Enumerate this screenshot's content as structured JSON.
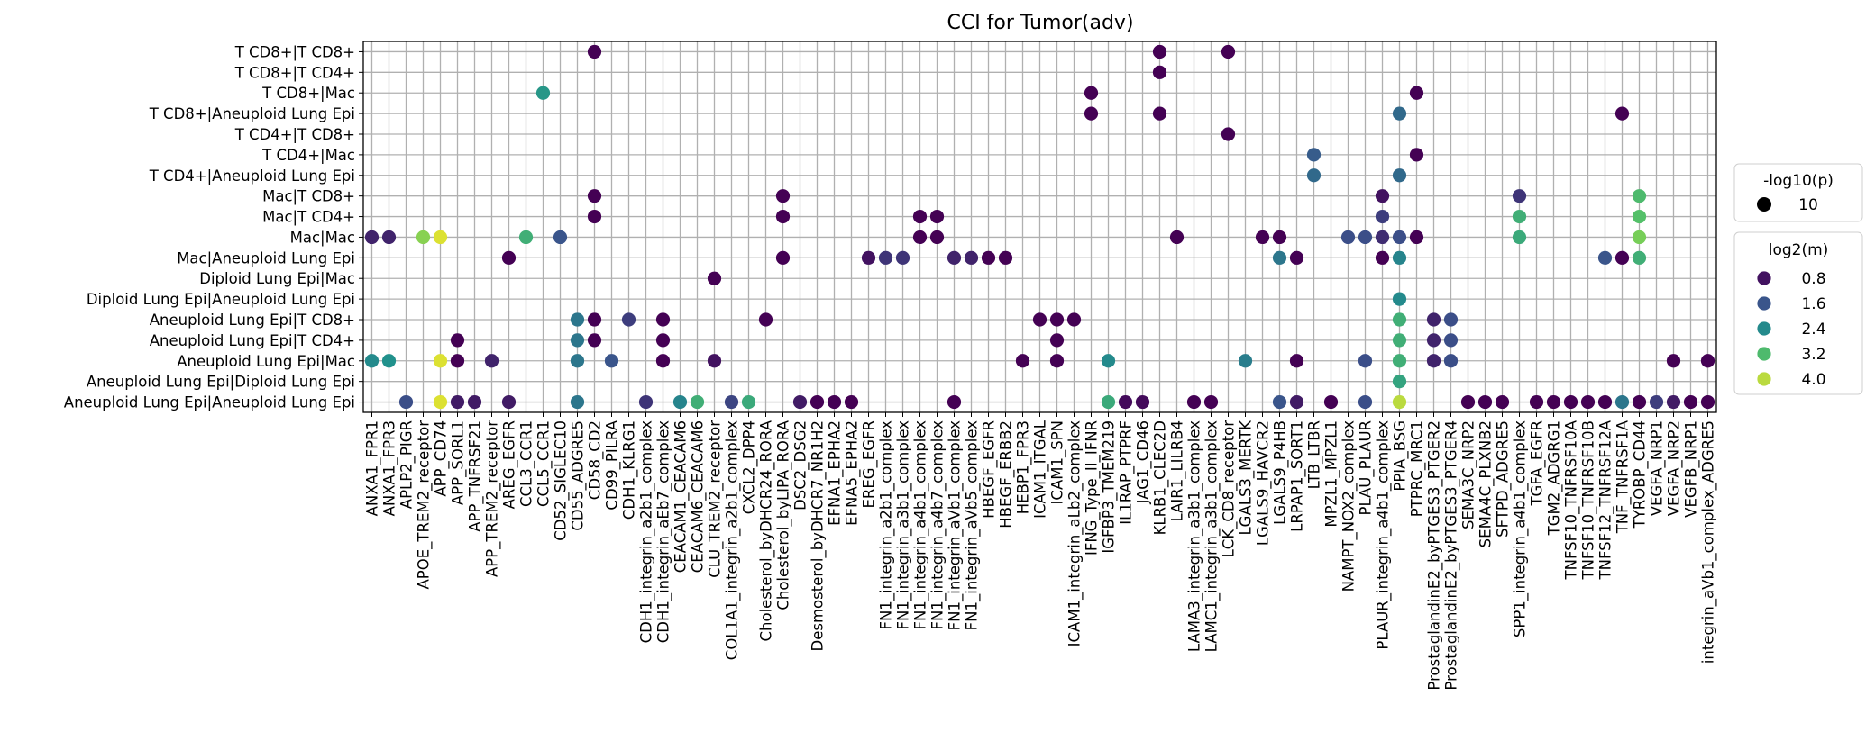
{
  "chart_data": {
    "type": "scatter",
    "title": "CCI for Tumor(adv)",
    "xlabel": "",
    "ylabel": "",
    "grid": true,
    "y_categories": [
      "T CD8+|T CD8+",
      "T CD8+|T CD4+",
      "T CD8+|Mac",
      "T CD8+|Aneuploid Lung Epi",
      "T CD4+|T CD8+",
      "T CD4+|Mac",
      "T CD4+|Aneuploid Lung Epi",
      "Mac|T CD8+",
      "Mac|T CD4+",
      "Mac|Mac",
      "Mac|Aneuploid Lung Epi",
      "Diploid Lung Epi|Mac",
      "Diploid Lung Epi|Aneuploid Lung Epi",
      "Aneuploid Lung Epi|T CD8+",
      "Aneuploid Lung Epi|T CD4+",
      "Aneuploid Lung Epi|Mac",
      "Aneuploid Lung Epi|Diploid Lung Epi",
      "Aneuploid Lung Epi|Aneuploid Lung Epi"
    ],
    "x_categories": [
      "ANXA1_FPR1",
      "ANXA1_FPR3",
      "APLP2_PIGR",
      "APOE_TREM2_receptor",
      "APP_CD74",
      "APP_SORL1",
      "APP_TNFRSF21",
      "APP_TREM2_receptor",
      "AREG_EGFR",
      "CCL3_CCR1",
      "CCL5_CCR1",
      "CD52_SIGLEC10",
      "CD55_ADGRE5",
      "CD58_CD2",
      "CD99_PILRA",
      "CDH1_KLRG1",
      "CDH1_integrin_a2b1_complex",
      "CDH1_integrin_aEb7_complex",
      "CEACAM1_CEACAM6",
      "CEACAM6_CEACAM6",
      "CLU_TREM2_receptor",
      "COL1A1_integrin_a2b1_complex",
      "CXCL2_DPP4",
      "Cholesterol_byDHCR24_RORA",
      "Cholesterol_byLIPA_RORA",
      "DSC2_DSG2",
      "Desmosterol_byDHCR7_NR1H2",
      "EFNA1_EPHA2",
      "EFNA5_EPHA2",
      "EREG_EGFR",
      "FN1_integrin_a2b1_complex",
      "FN1_integrin_a3b1_complex",
      "FN1_integrin_a4b1_complex",
      "FN1_integrin_a4b7_complex",
      "FN1_integrin_aVb1_complex",
      "FN1_integrin_aVb5_complex",
      "HBEGF_EGFR",
      "HBEGF_ERBB2",
      "HEBP1_FPR3",
      "ICAM1_ITGAL",
      "ICAM1_SPN",
      "ICAM1_integrin_aLb2_complex",
      "IFNG_Type_II_IFNR",
      "IGFBP3_TMEM219",
      "IL1RAP_PTPRF",
      "JAG1_CD46",
      "KLRB1_CLEC2D",
      "LAIR1_LILRB4",
      "LAMA3_integrin_a3b1_complex",
      "LAMC1_integrin_a3b1_complex",
      "LCK_CD8_receptor",
      "LGALS3_MERTK",
      "LGALS9_HAVCR2",
      "LGALS9_P4HB",
      "LRPAP1_SORT1",
      "LTB_LTBR",
      "MPZL1_MPZL1",
      "NAMPT_NOX2_complex",
      "PLAU_PLAUR",
      "PLAUR_integrin_a4b1_complex",
      "PPIA_BSG",
      "PTPRC_MRC1",
      "ProstaglandinE2_byPTGES3_PTGER2",
      "ProstaglandinE2_byPTGES3_PTGER4",
      "SEMA3C_NRP2",
      "SEMA4C_PLXNB2",
      "SFTPD_ADGRE5",
      "SPP1_integrin_a4b1_complex",
      "TGFA_EGFR",
      "TGM2_ADGRG1",
      "TNFSF10_TNFRSF10A",
      "TNFSF10_TNFRSF10B",
      "TNFSF12_TNFRSF12A",
      "TNF_TNFRSF1A",
      "TYROBP_CD44",
      "VEGFA_NRP1",
      "VEGFA_NRP2",
      "VEGFB_NRP1",
      "integrin_aVb1_complex_ADGRE5"
    ],
    "points": [
      {
        "x": "CD58_CD2",
        "y": "T CD8+|T CD8+",
        "log2m": 0.6
      },
      {
        "x": "KLRB1_CLEC2D",
        "y": "T CD8+|T CD8+",
        "log2m": 0.6
      },
      {
        "x": "LCK_CD8_receptor",
        "y": "T CD8+|T CD8+",
        "log2m": 0.6
      },
      {
        "x": "KLRB1_CLEC2D",
        "y": "T CD8+|T CD4+",
        "log2m": 0.6
      },
      {
        "x": "CCL5_CCR1",
        "y": "T CD8+|Mac",
        "log2m": 2.6
      },
      {
        "x": "IFNG_Type_II_IFNR",
        "y": "T CD8+|Mac",
        "log2m": 0.6
      },
      {
        "x": "PTPRC_MRC1",
        "y": "T CD8+|Mac",
        "log2m": 0.6
      },
      {
        "x": "IFNG_Type_II_IFNR",
        "y": "T CD8+|Aneuploid Lung Epi",
        "log2m": 0.6
      },
      {
        "x": "KLRB1_CLEC2D",
        "y": "T CD8+|Aneuploid Lung Epi",
        "log2m": 0.6
      },
      {
        "x": "PPIA_BSG",
        "y": "T CD8+|Aneuploid Lung Epi",
        "log2m": 1.9
      },
      {
        "x": "TNF_TNFRSF1A",
        "y": "T CD8+|Aneuploid Lung Epi",
        "log2m": 0.6
      },
      {
        "x": "LCK_CD8_receptor",
        "y": "T CD4+|T CD8+",
        "log2m": 0.6
      },
      {
        "x": "LTB_LTBR",
        "y": "T CD4+|Mac",
        "log2m": 1.7
      },
      {
        "x": "PTPRC_MRC1",
        "y": "T CD4+|Mac",
        "log2m": 0.6
      },
      {
        "x": "LTB_LTBR",
        "y": "T CD4+|Aneuploid Lung Epi",
        "log2m": 1.9
      },
      {
        "x": "PPIA_BSG",
        "y": "T CD4+|Aneuploid Lung Epi",
        "log2m": 1.9
      },
      {
        "x": "CD58_CD2",
        "y": "Mac|T CD8+",
        "log2m": 0.6
      },
      {
        "x": "Cholesterol_byLIPA_RORA",
        "y": "Mac|T CD8+",
        "log2m": 0.6
      },
      {
        "x": "PLAUR_integrin_a4b1_complex",
        "y": "Mac|T CD8+",
        "log2m": 0.8
      },
      {
        "x": "SPP1_integrin_a4b1_complex",
        "y": "Mac|T CD8+",
        "log2m": 1.2
      },
      {
        "x": "TYROBP_CD44",
        "y": "Mac|T CD8+",
        "log2m": 3.2
      },
      {
        "x": "CD58_CD2",
        "y": "Mac|T CD4+",
        "log2m": 0.6
      },
      {
        "x": "Cholesterol_byLIPA_RORA",
        "y": "Mac|T CD4+",
        "log2m": 0.6
      },
      {
        "x": "FN1_integrin_a4b1_complex",
        "y": "Mac|T CD4+",
        "log2m": 0.6
      },
      {
        "x": "FN1_integrin_a4b7_complex",
        "y": "Mac|T CD4+",
        "log2m": 0.6
      },
      {
        "x": "PLAUR_integrin_a4b1_complex",
        "y": "Mac|T CD4+",
        "log2m": 1.3
      },
      {
        "x": "SPP1_integrin_a4b1_complex",
        "y": "Mac|T CD4+",
        "log2m": 3.0
      },
      {
        "x": "TYROBP_CD44",
        "y": "Mac|T CD4+",
        "log2m": 3.3
      },
      {
        "x": "ANXA1_FPR1",
        "y": "Mac|Mac",
        "log2m": 1.0
      },
      {
        "x": "ANXA1_FPR3",
        "y": "Mac|Mac",
        "log2m": 1.0
      },
      {
        "x": "APOE_TREM2_receptor",
        "y": "Mac|Mac",
        "log2m": 3.7
      },
      {
        "x": "APP_CD74",
        "y": "Mac|Mac",
        "log2m": 4.2
      },
      {
        "x": "CCL3_CCR1",
        "y": "Mac|Mac",
        "log2m": 3.0
      },
      {
        "x": "CD52_SIGLEC10",
        "y": "Mac|Mac",
        "log2m": 1.6
      },
      {
        "x": "FN1_integrin_a4b1_complex",
        "y": "Mac|Mac",
        "log2m": 0.6
      },
      {
        "x": "FN1_integrin_a4b7_complex",
        "y": "Mac|Mac",
        "log2m": 0.6
      },
      {
        "x": "LAIR1_LILRB4",
        "y": "Mac|Mac",
        "log2m": 0.6
      },
      {
        "x": "LGALS9_HAVCR2",
        "y": "Mac|Mac",
        "log2m": 0.6
      },
      {
        "x": "LGALS9_P4HB",
        "y": "Mac|Mac",
        "log2m": 0.6
      },
      {
        "x": "NAMPT_NOX2_complex",
        "y": "Mac|Mac",
        "log2m": 1.5
      },
      {
        "x": "PLAU_PLAUR",
        "y": "Mac|Mac",
        "log2m": 1.5
      },
      {
        "x": "PLAUR_integrin_a4b1_complex",
        "y": "Mac|Mac",
        "log2m": 1.1
      },
      {
        "x": "PPIA_BSG",
        "y": "Mac|Mac",
        "log2m": 1.5
      },
      {
        "x": "PTPRC_MRC1",
        "y": "Mac|Mac",
        "log2m": 0.6
      },
      {
        "x": "SPP1_integrin_a4b1_complex",
        "y": "Mac|Mac",
        "log2m": 2.9
      },
      {
        "x": "TYROBP_CD44",
        "y": "Mac|Mac",
        "log2m": 3.6
      },
      {
        "x": "AREG_EGFR",
        "y": "Mac|Aneuploid Lung Epi",
        "log2m": 0.6
      },
      {
        "x": "Cholesterol_byLIPA_RORA",
        "y": "Mac|Aneuploid Lung Epi",
        "log2m": 0.6
      },
      {
        "x": "EREG_EGFR",
        "y": "Mac|Aneuploid Lung Epi",
        "log2m": 0.8
      },
      {
        "x": "FN1_integrin_a2b1_complex",
        "y": "Mac|Aneuploid Lung Epi",
        "log2m": 1.2
      },
      {
        "x": "FN1_integrin_a3b1_complex",
        "y": "Mac|Aneuploid Lung Epi",
        "log2m": 1.2
      },
      {
        "x": "FN1_integrin_aVb1_complex",
        "y": "Mac|Aneuploid Lung Epi",
        "log2m": 1.0
      },
      {
        "x": "FN1_integrin_aVb5_complex",
        "y": "Mac|Aneuploid Lung Epi",
        "log2m": 1.0
      },
      {
        "x": "HBEGF_EGFR",
        "y": "Mac|Aneuploid Lung Epi",
        "log2m": 0.6
      },
      {
        "x": "HBEGF_ERBB2",
        "y": "Mac|Aneuploid Lung Epi",
        "log2m": 0.6
      },
      {
        "x": "LGALS9_P4HB",
        "y": "Mac|Aneuploid Lung Epi",
        "log2m": 2.1
      },
      {
        "x": "LRPAP1_SORT1",
        "y": "Mac|Aneuploid Lung Epi",
        "log2m": 0.6
      },
      {
        "x": "PLAUR_integrin_a4b1_complex",
        "y": "Mac|Aneuploid Lung Epi",
        "log2m": 0.6
      },
      {
        "x": "PPIA_BSG",
        "y": "Mac|Aneuploid Lung Epi",
        "log2m": 2.3
      },
      {
        "x": "TNFSF12_TNFRSF12A",
        "y": "Mac|Aneuploid Lung Epi",
        "log2m": 1.6
      },
      {
        "x": "TNF_TNFRSF1A",
        "y": "Mac|Aneuploid Lung Epi",
        "log2m": 0.6
      },
      {
        "x": "TYROBP_CD44",
        "y": "Mac|Aneuploid Lung Epi",
        "log2m": 3.0
      },
      {
        "x": "CLU_TREM2_receptor",
        "y": "Diploid Lung Epi|Mac",
        "log2m": 0.6
      },
      {
        "x": "PPIA_BSG",
        "y": "Diploid Lung Epi|Aneuploid Lung Epi",
        "log2m": 2.4
      },
      {
        "x": "CD55_ADGRE5",
        "y": "Aneuploid Lung Epi|T CD8+",
        "log2m": 2.1
      },
      {
        "x": "CD58_CD2",
        "y": "Aneuploid Lung Epi|T CD8+",
        "log2m": 0.6
      },
      {
        "x": "CDH1_KLRG1",
        "y": "Aneuploid Lung Epi|T CD8+",
        "log2m": 1.3
      },
      {
        "x": "CDH1_integrin_aEb7_complex",
        "y": "Aneuploid Lung Epi|T CD8+",
        "log2m": 0.6
      },
      {
        "x": "Cholesterol_byDHCR24_RORA",
        "y": "Aneuploid Lung Epi|T CD8+",
        "log2m": 0.6
      },
      {
        "x": "ICAM1_ITGAL",
        "y": "Aneuploid Lung Epi|T CD8+",
        "log2m": 0.6
      },
      {
        "x": "ICAM1_SPN",
        "y": "Aneuploid Lung Epi|T CD8+",
        "log2m": 0.6
      },
      {
        "x": "ICAM1_integrin_aLb2_complex",
        "y": "Aneuploid Lung Epi|T CD8+",
        "log2m": 0.6
      },
      {
        "x": "PPIA_BSG",
        "y": "Aneuploid Lung Epi|T CD8+",
        "log2m": 3.0
      },
      {
        "x": "ProstaglandinE2_byPTGES3_PTGER2",
        "y": "Aneuploid Lung Epi|T CD8+",
        "log2m": 1.0
      },
      {
        "x": "ProstaglandinE2_byPTGES3_PTGER4",
        "y": "Aneuploid Lung Epi|T CD8+",
        "log2m": 1.5
      },
      {
        "x": "APP_SORL1",
        "y": "Aneuploid Lung Epi|T CD4+",
        "log2m": 0.6
      },
      {
        "x": "CD55_ADGRE5",
        "y": "Aneuploid Lung Epi|T CD4+",
        "log2m": 2.1
      },
      {
        "x": "CD58_CD2",
        "y": "Aneuploid Lung Epi|T CD4+",
        "log2m": 0.6
      },
      {
        "x": "CDH1_integrin_aEb7_complex",
        "y": "Aneuploid Lung Epi|T CD4+",
        "log2m": 0.6
      },
      {
        "x": "ICAM1_SPN",
        "y": "Aneuploid Lung Epi|T CD4+",
        "log2m": 0.6
      },
      {
        "x": "PPIA_BSG",
        "y": "Aneuploid Lung Epi|T CD4+",
        "log2m": 3.0
      },
      {
        "x": "ProstaglandinE2_byPTGES3_PTGER2",
        "y": "Aneuploid Lung Epi|T CD4+",
        "log2m": 1.0
      },
      {
        "x": "ProstaglandinE2_byPTGES3_PTGER4",
        "y": "Aneuploid Lung Epi|T CD4+",
        "log2m": 1.5
      },
      {
        "x": "ANXA1_FPR1",
        "y": "Aneuploid Lung Epi|Mac",
        "log2m": 2.4
      },
      {
        "x": "ANXA1_FPR3",
        "y": "Aneuploid Lung Epi|Mac",
        "log2m": 2.5
      },
      {
        "x": "APP_CD74",
        "y": "Aneuploid Lung Epi|Mac",
        "log2m": 4.2
      },
      {
        "x": "APP_SORL1",
        "y": "Aneuploid Lung Epi|Mac",
        "log2m": 0.6
      },
      {
        "x": "APP_TREM2_receptor",
        "y": "Aneuploid Lung Epi|Mac",
        "log2m": 1.0
      },
      {
        "x": "CD55_ADGRE5",
        "y": "Aneuploid Lung Epi|Mac",
        "log2m": 2.1
      },
      {
        "x": "CD99_PILRA",
        "y": "Aneuploid Lung Epi|Mac",
        "log2m": 1.6
      },
      {
        "x": "CDH1_integrin_aEb7_complex",
        "y": "Aneuploid Lung Epi|Mac",
        "log2m": 0.6
      },
      {
        "x": "CLU_TREM2_receptor",
        "y": "Aneuploid Lung Epi|Mac",
        "log2m": 0.8
      },
      {
        "x": "HEBP1_FPR3",
        "y": "Aneuploid Lung Epi|Mac",
        "log2m": 0.6
      },
      {
        "x": "ICAM1_SPN",
        "y": "Aneuploid Lung Epi|Mac",
        "log2m": 0.6
      },
      {
        "x": "IGFBP3_TMEM219",
        "y": "Aneuploid Lung Epi|Mac",
        "log2m": 2.4
      },
      {
        "x": "LGALS3_MERTK",
        "y": "Aneuploid Lung Epi|Mac",
        "log2m": 2.2
      },
      {
        "x": "LRPAP1_SORT1",
        "y": "Aneuploid Lung Epi|Mac",
        "log2m": 0.6
      },
      {
        "x": "PLAU_PLAUR",
        "y": "Aneuploid Lung Epi|Mac",
        "log2m": 1.5
      },
      {
        "x": "PPIA_BSG",
        "y": "Aneuploid Lung Epi|Mac",
        "log2m": 3.0
      },
      {
        "x": "ProstaglandinE2_byPTGES3_PTGER2",
        "y": "Aneuploid Lung Epi|Mac",
        "log2m": 1.0
      },
      {
        "x": "ProstaglandinE2_byPTGES3_PTGER4",
        "y": "Aneuploid Lung Epi|Mac",
        "log2m": 1.5
      },
      {
        "x": "VEGFA_NRP2",
        "y": "Aneuploid Lung Epi|Mac",
        "log2m": 0.6
      },
      {
        "x": "integrin_aVb1_complex_ADGRE5",
        "y": "Aneuploid Lung Epi|Mac",
        "log2m": 0.6
      },
      {
        "x": "PPIA_BSG",
        "y": "Aneuploid Lung Epi|Diploid Lung Epi",
        "log2m": 2.8
      },
      {
        "x": "APLP2_PIGR",
        "y": "Aneuploid Lung Epi|Aneuploid Lung Epi",
        "log2m": 1.5
      },
      {
        "x": "APP_CD74",
        "y": "Aneuploid Lung Epi|Aneuploid Lung Epi",
        "log2m": 4.2
      },
      {
        "x": "APP_SORL1",
        "y": "Aneuploid Lung Epi|Aneuploid Lung Epi",
        "log2m": 0.9
      },
      {
        "x": "APP_TNFRSF21",
        "y": "Aneuploid Lung Epi|Aneuploid Lung Epi",
        "log2m": 0.9
      },
      {
        "x": "AREG_EGFR",
        "y": "Aneuploid Lung Epi|Aneuploid Lung Epi",
        "log2m": 0.9
      },
      {
        "x": "CD55_ADGRE5",
        "y": "Aneuploid Lung Epi|Aneuploid Lung Epi",
        "log2m": 2.1
      },
      {
        "x": "CDH1_integrin_a2b1_complex",
        "y": "Aneuploid Lung Epi|Aneuploid Lung Epi",
        "log2m": 1.2
      },
      {
        "x": "CEACAM1_CEACAM6",
        "y": "Aneuploid Lung Epi|Aneuploid Lung Epi",
        "log2m": 2.3
      },
      {
        "x": "CEACAM6_CEACAM6",
        "y": "Aneuploid Lung Epi|Aneuploid Lung Epi",
        "log2m": 3.0
      },
      {
        "x": "COL1A1_integrin_a2b1_complex",
        "y": "Aneuploid Lung Epi|Aneuploid Lung Epi",
        "log2m": 1.4
      },
      {
        "x": "CXCL2_DPP4",
        "y": "Aneuploid Lung Epi|Aneuploid Lung Epi",
        "log2m": 2.9
      },
      {
        "x": "DSC2_DSG2",
        "y": "Aneuploid Lung Epi|Aneuploid Lung Epi",
        "log2m": 0.9
      },
      {
        "x": "Desmosterol_byDHCR7_NR1H2",
        "y": "Aneuploid Lung Epi|Aneuploid Lung Epi",
        "log2m": 0.6
      },
      {
        "x": "EFNA1_EPHA2",
        "y": "Aneuploid Lung Epi|Aneuploid Lung Epi",
        "log2m": 0.6
      },
      {
        "x": "EFNA5_EPHA2",
        "y": "Aneuploid Lung Epi|Aneuploid Lung Epi",
        "log2m": 0.6
      },
      {
        "x": "FN1_integrin_aVb1_complex",
        "y": "Aneuploid Lung Epi|Aneuploid Lung Epi",
        "log2m": 0.6
      },
      {
        "x": "IGFBP3_TMEM219",
        "y": "Aneuploid Lung Epi|Aneuploid Lung Epi",
        "log2m": 2.9
      },
      {
        "x": "IL1RAP_PTPRF",
        "y": "Aneuploid Lung Epi|Aneuploid Lung Epi",
        "log2m": 0.7
      },
      {
        "x": "JAG1_CD46",
        "y": "Aneuploid Lung Epi|Aneuploid Lung Epi",
        "log2m": 0.7
      },
      {
        "x": "LAMA3_integrin_a3b1_complex",
        "y": "Aneuploid Lung Epi|Aneuploid Lung Epi",
        "log2m": 0.6
      },
      {
        "x": "LAMC1_integrin_a3b1_complex",
        "y": "Aneuploid Lung Epi|Aneuploid Lung Epi",
        "log2m": 0.6
      },
      {
        "x": "LGALS9_P4HB",
        "y": "Aneuploid Lung Epi|Aneuploid Lung Epi",
        "log2m": 1.6
      },
      {
        "x": "LRPAP1_SORT1",
        "y": "Aneuploid Lung Epi|Aneuploid Lung Epi",
        "log2m": 0.9
      },
      {
        "x": "MPZL1_MPZL1",
        "y": "Aneuploid Lung Epi|Aneuploid Lung Epi",
        "log2m": 0.6
      },
      {
        "x": "PLAU_PLAUR",
        "y": "Aneuploid Lung Epi|Aneuploid Lung Epi",
        "log2m": 1.5
      },
      {
        "x": "PPIA_BSG",
        "y": "Aneuploid Lung Epi|Aneuploid Lung Epi",
        "log2m": 4.0
      },
      {
        "x": "SEMA3C_NRP2",
        "y": "Aneuploid Lung Epi|Aneuploid Lung Epi",
        "log2m": 0.6
      },
      {
        "x": "SEMA4C_PLXNB2",
        "y": "Aneuploid Lung Epi|Aneuploid Lung Epi",
        "log2m": 0.6
      },
      {
        "x": "SFTPD_ADGRE5",
        "y": "Aneuploid Lung Epi|Aneuploid Lung Epi",
        "log2m": 0.6
      },
      {
        "x": "TGFA_EGFR",
        "y": "Aneuploid Lung Epi|Aneuploid Lung Epi",
        "log2m": 0.6
      },
      {
        "x": "TGM2_ADGRG1",
        "y": "Aneuploid Lung Epi|Aneuploid Lung Epi",
        "log2m": 0.6
      },
      {
        "x": "TNFSF10_TNFRSF10A",
        "y": "Aneuploid Lung Epi|Aneuploid Lung Epi",
        "log2m": 0.6
      },
      {
        "x": "TNFSF10_TNFRSF10B",
        "y": "Aneuploid Lung Epi|Aneuploid Lung Epi",
        "log2m": 0.6
      },
      {
        "x": "TNFSF12_TNFRSF12A",
        "y": "Aneuploid Lung Epi|Aneuploid Lung Epi",
        "log2m": 0.6
      },
      {
        "x": "TNF_TNFRSF1A",
        "y": "Aneuploid Lung Epi|Aneuploid Lung Epi",
        "log2m": 2.1
      },
      {
        "x": "TYROBP_CD44",
        "y": "Aneuploid Lung Epi|Aneuploid Lung Epi",
        "log2m": 0.6
      },
      {
        "x": "VEGFA_NRP1",
        "y": "Aneuploid Lung Epi|Aneuploid Lung Epi",
        "log2m": 1.3
      },
      {
        "x": "VEGFA_NRP2",
        "y": "Aneuploid Lung Epi|Aneuploid Lung Epi",
        "log2m": 0.9
      },
      {
        "x": "VEGFB_NRP1",
        "y": "Aneuploid Lung Epi|Aneuploid Lung Epi",
        "log2m": 0.6
      },
      {
        "x": "integrin_aVb1_complex_ADGRE5",
        "y": "Aneuploid Lung Epi|Aneuploid Lung Epi",
        "log2m": 0.6
      }
    ],
    "size_legend": {
      "title": "-log10(p)",
      "entries": [
        {
          "label": "10",
          "value": 10
        }
      ]
    },
    "color_legend": {
      "title": "log2(m)",
      "entries": [
        {
          "label": "0.8",
          "value": 0.8
        },
        {
          "label": "1.6",
          "value": 1.6
        },
        {
          "label": "2.4",
          "value": 2.4
        },
        {
          "label": "3.2",
          "value": 3.2
        },
        {
          "label": "4.0",
          "value": 4.0
        }
      ]
    },
    "colormap": "viridis",
    "color_range": [
      0.6,
      4.4
    ],
    "legend_position": "right"
  }
}
